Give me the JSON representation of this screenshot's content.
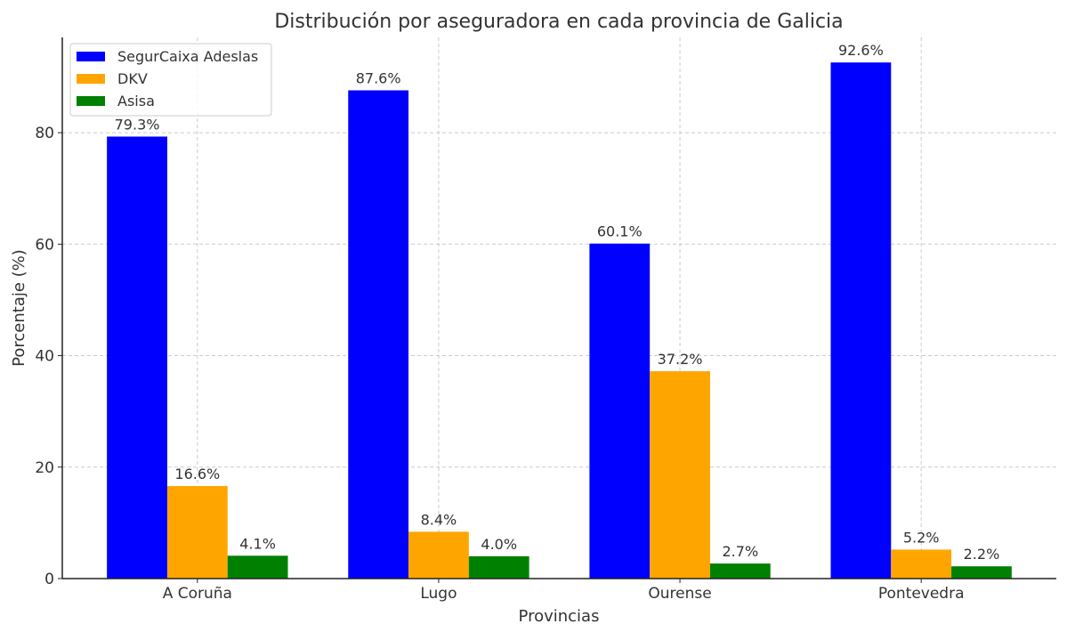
{
  "chart_data": {
    "type": "bar",
    "title": "Distribución por aseguradora en cada provincia de Galicia",
    "xlabel": "Provincias",
    "ylabel": "Porcentaje (%)",
    "categories": [
      "A Coruña",
      "Lugo",
      "Ourense",
      "Pontevedra"
    ],
    "series": [
      {
        "name": "SegurCaixa Adeslas",
        "color": "#0000ff",
        "values": [
          79.3,
          87.6,
          60.1,
          92.6
        ],
        "labels": [
          "79.3%",
          "87.6%",
          "60.1%",
          "92.6%"
        ]
      },
      {
        "name": "DKV",
        "color": "#ffa500",
        "values": [
          16.6,
          8.4,
          37.2,
          5.2
        ],
        "labels": [
          "16.6%",
          "8.4%",
          "37.2%",
          "5.2%"
        ]
      },
      {
        "name": "Asisa",
        "color": "#008000",
        "values": [
          4.1,
          4.0,
          2.7,
          2.2
        ],
        "labels": [
          "4.1%",
          "4.0%",
          "2.7%",
          "2.2%"
        ]
      }
    ],
    "yticks": [
      0,
      20,
      40,
      60,
      80
    ],
    "ylim": [
      0,
      97.1
    ],
    "grid": true,
    "legend_position": "top-left"
  }
}
